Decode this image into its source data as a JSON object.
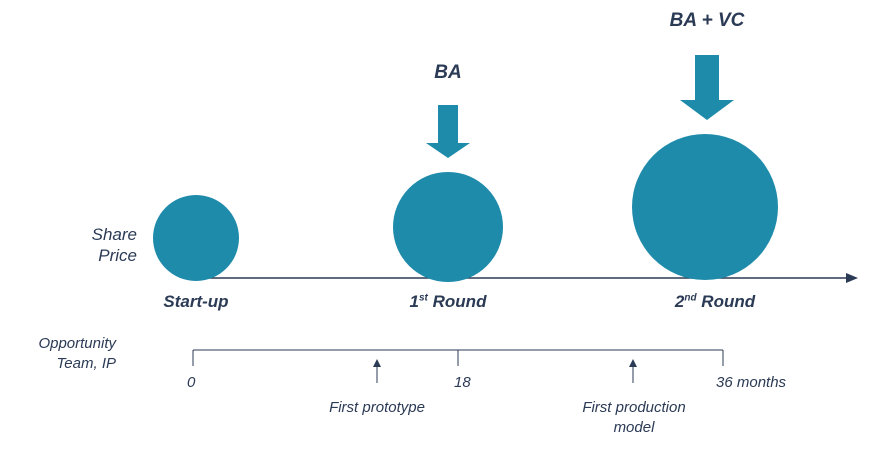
{
  "axis_label": "Share Price",
  "stages": [
    {
      "name": "Start-up",
      "ordinal": "",
      "suffix": ""
    },
    {
      "name": "Round",
      "ordinal": "1",
      "suffix": "st"
    },
    {
      "name": "Round",
      "ordinal": "2",
      "suffix": "nd"
    }
  ],
  "investors": [
    {
      "label": "BA"
    },
    {
      "label": "BA + VC"
    }
  ],
  "timeline": {
    "label": "Opportunity Team, IP",
    "ticks": [
      "0",
      "18",
      "36 months"
    ],
    "milestones": [
      "First prototype",
      "First production model"
    ]
  },
  "colors": {
    "bubble": "#1f8bab",
    "text": "#2b3a55",
    "line": "#2b3a55"
  }
}
